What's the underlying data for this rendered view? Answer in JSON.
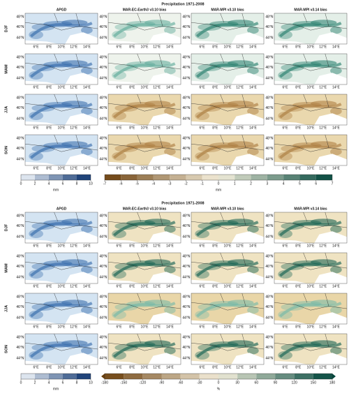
{
  "panels": [
    {
      "title": "Precipitation 1971-2008",
      "columns": [
        "APGD",
        "MAR-EC-Earth3 v3.10 bias",
        "MAR-MPI v3.10 bias",
        "MAR-MPI v3.14 bias"
      ],
      "rows": [
        "DJF",
        "MAM",
        "JJA",
        "SON"
      ],
      "lon_ticks": [
        "6°E",
        "8°E",
        "10°E",
        "12°E",
        "14°E"
      ],
      "lat_ticks": [
        "48°N",
        "46°N",
        "44°N"
      ],
      "colorbars": [
        {
          "lim": [
            0,
            10
          ],
          "ticks": [
            0,
            2,
            4,
            6,
            8,
            10
          ],
          "label": "mm"
        },
        {
          "lim": [
            -7,
            7
          ],
          "ticks": [
            -7,
            -6,
            -5,
            -4,
            -3,
            -2,
            -1,
            0,
            1,
            2,
            3,
            4,
            5,
            6,
            7
          ],
          "label": "mm"
        }
      ]
    },
    {
      "title": "Precipitation 1971-2008",
      "columns": [
        "APGD",
        "MAR-EC-Earth3 v3.10 bias",
        "MAR-MPI v3.10 bias",
        "MAR-MPI v3.14 bias"
      ],
      "rows": [
        "DJF",
        "MAM",
        "JJA",
        "SON"
      ],
      "lon_ticks": [
        "6°E",
        "8°E",
        "10°E",
        "12°E",
        "14°E"
      ],
      "lat_ticks": [
        "48°N",
        "46°N",
        "44°N"
      ],
      "colorbars": [
        {
          "lim": [
            0,
            10
          ],
          "ticks": [
            0,
            2,
            4,
            6,
            8,
            10
          ],
          "label": "mm"
        },
        {
          "lim": [
            -180,
            180
          ],
          "ticks": [
            -180,
            -150,
            -120,
            -90,
            -60,
            -30,
            0,
            30,
            60,
            90,
            120,
            150,
            180
          ],
          "label": "%"
        }
      ]
    }
  ]
}
